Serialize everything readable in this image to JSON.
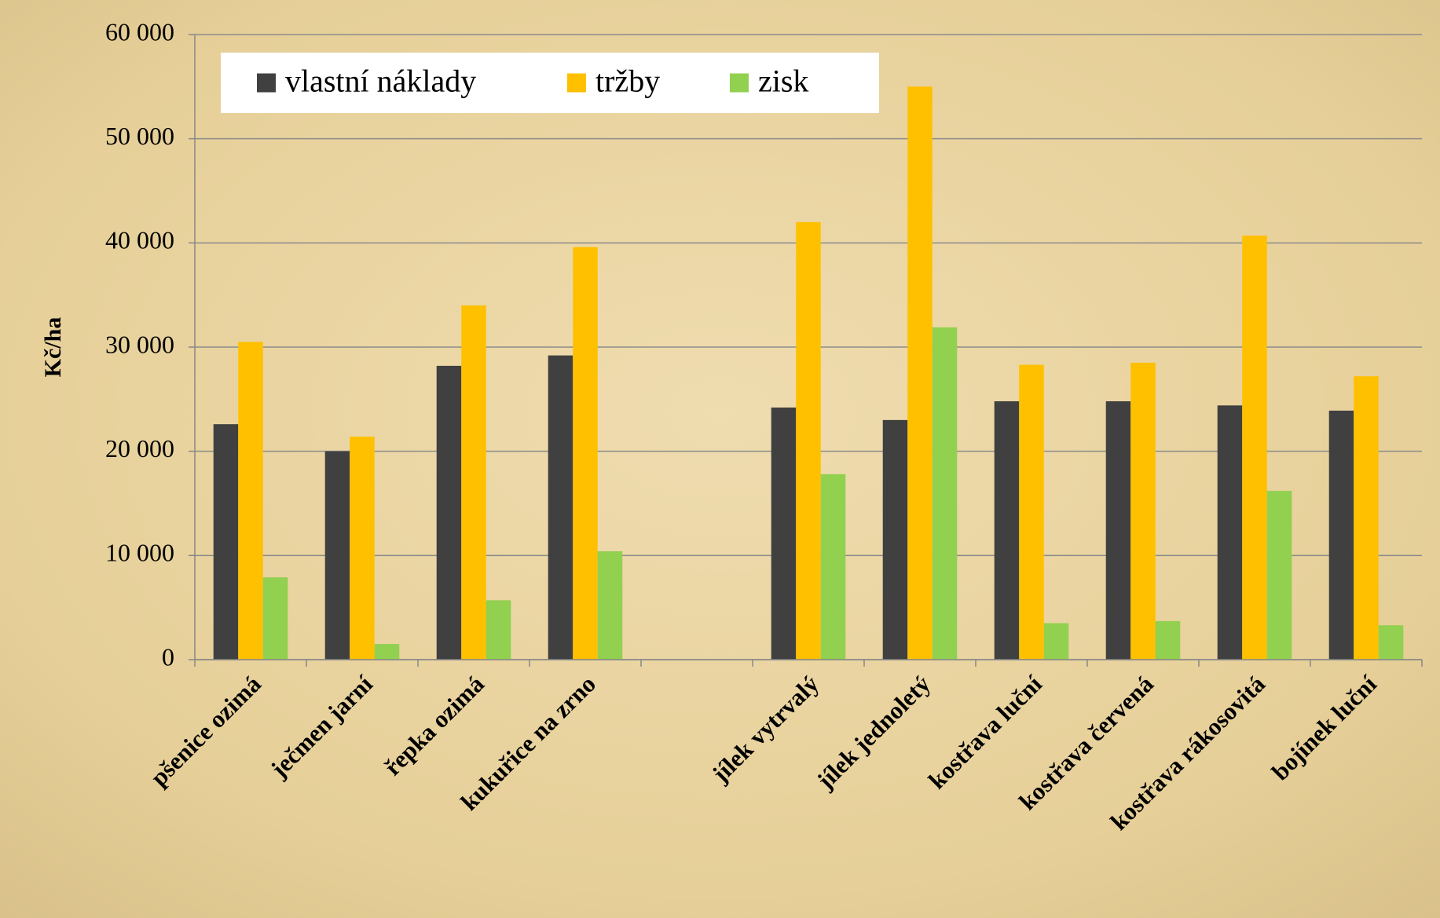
{
  "chart_data": {
    "type": "bar",
    "y_label": "Kč/ha",
    "categories": [
      "pšenice ozimá",
      "ječmen jarní",
      "řepka ozimá",
      "kukuřice na zrno",
      null,
      "jílek vytrvalý",
      "jílek jednoletý",
      "kostřava luční",
      "kostřava červená",
      "kostřava rákosovitá",
      "bojínek luční"
    ],
    "series": [
      {
        "name": "vlastní náklady",
        "color": "#404040",
        "values": [
          22600,
          20000,
          28200,
          29200,
          null,
          24200,
          23000,
          24800,
          24800,
          24400,
          23900
        ]
      },
      {
        "name": "tržby",
        "color": "#ffc000",
        "values": [
          30500,
          21400,
          34000,
          39600,
          null,
          42000,
          55000,
          28300,
          28500,
          40700,
          27200
        ]
      },
      {
        "name": "zisk",
        "color": "#92d050",
        "values": [
          7900,
          1500,
          5700,
          10400,
          null,
          17800,
          31900,
          3500,
          3700,
          16200,
          3300
        ]
      }
    ],
    "ylim": [
      0,
      60000
    ],
    "yticks": [
      0,
      {
        "value": 10000,
        "label": "10 000"
      },
      {
        "value": 20000,
        "label": "20 000"
      },
      {
        "value": 30000,
        "label": "30 000"
      },
      {
        "value": 40000,
        "label": "40 000"
      },
      {
        "value": 50000,
        "label": "50 000"
      },
      {
        "value": 60000,
        "label": "60 000"
      }
    ],
    "grid": true,
    "legend": "top-left"
  }
}
